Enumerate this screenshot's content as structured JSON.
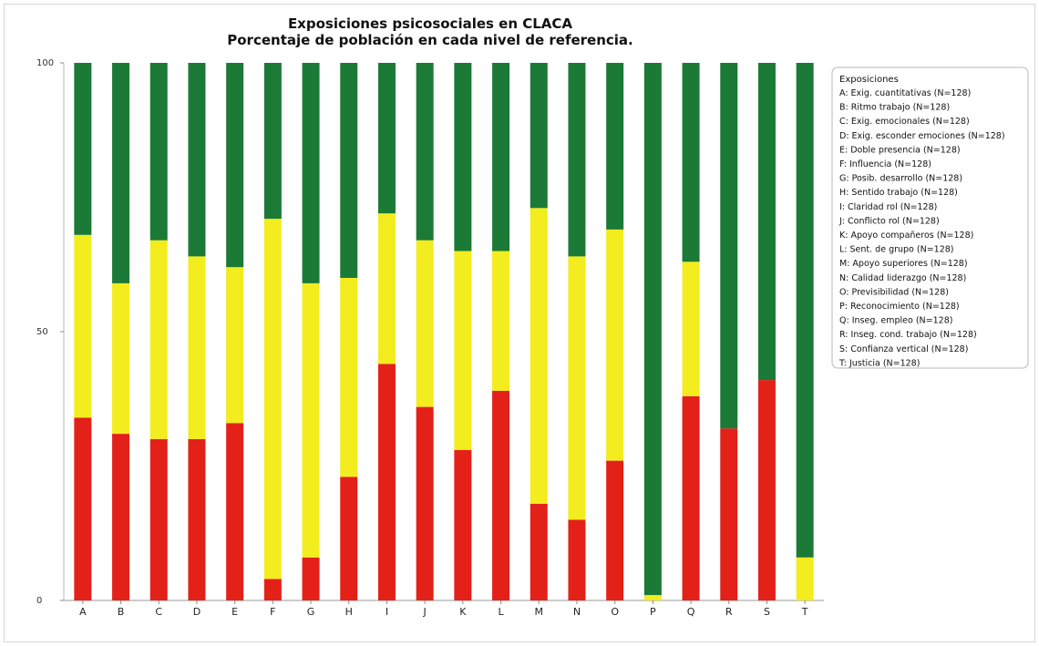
{
  "chart_data": {
    "type": "bar",
    "stacked": true,
    "title": [
      "Exposiciones psicosociales en CLACA",
      "Porcentaje de población en cada nivel de referencia."
    ],
    "ylim": [
      0,
      100
    ],
    "yticks": [
      "0",
      "50",
      "100"
    ],
    "categories": [
      "A",
      "B",
      "C",
      "D",
      "E",
      "F",
      "G",
      "H",
      "I",
      "J",
      "K",
      "L",
      "M",
      "N",
      "O",
      "P",
      "Q",
      "R",
      "S",
      "T"
    ],
    "series": [
      {
        "color": "#e32119",
        "values": [
          34,
          31,
          30,
          30,
          33,
          4,
          8,
          23,
          44,
          36,
          28,
          39,
          18,
          15,
          26,
          0,
          38,
          32,
          41,
          0
        ]
      },
      {
        "color": "#f3ec1e",
        "values": [
          34,
          28,
          37,
          34,
          29,
          67,
          51,
          37,
          28,
          31,
          37,
          26,
          55,
          49,
          43,
          1,
          25,
          0,
          0,
          8
        ]
      },
      {
        "color": "#1b7a35",
        "values": [
          32,
          41,
          33,
          36,
          38,
          29,
          41,
          40,
          28,
          33,
          35,
          35,
          27,
          36,
          31,
          99,
          37,
          68,
          59,
          92
        ]
      }
    ],
    "legend": {
      "title": "Exposiciones",
      "position": "right",
      "items": [
        "A: Exig. cuantitativas (N=128)",
        "B: Ritmo trabajo (N=128)",
        "C: Exig. emocionales (N=128)",
        "D: Exig. esconder emociones (N=128)",
        "E: Doble presencia (N=128)",
        "F: Influencia (N=128)",
        "G: Posib. desarrollo (N=128)",
        "H: Sentido trabajo (N=128)",
        "I: Claridad rol (N=128)",
        "J: Conflicto rol (N=128)",
        "K: Apoyo compañeros (N=128)",
        "L: Sent. de grupo (N=128)",
        "M: Apoyo superiores (N=128)",
        "N: Calidad liderazgo (N=128)",
        "O: Previsibilidad (N=128)",
        "P: Reconocimiento (N=128)",
        "Q: Inseg. empleo (N=128)",
        "R: Inseg. cond. trabajo (N=128)",
        "S: Confianza vertical (N=128)",
        "T: Justicia (N=128)"
      ]
    }
  }
}
